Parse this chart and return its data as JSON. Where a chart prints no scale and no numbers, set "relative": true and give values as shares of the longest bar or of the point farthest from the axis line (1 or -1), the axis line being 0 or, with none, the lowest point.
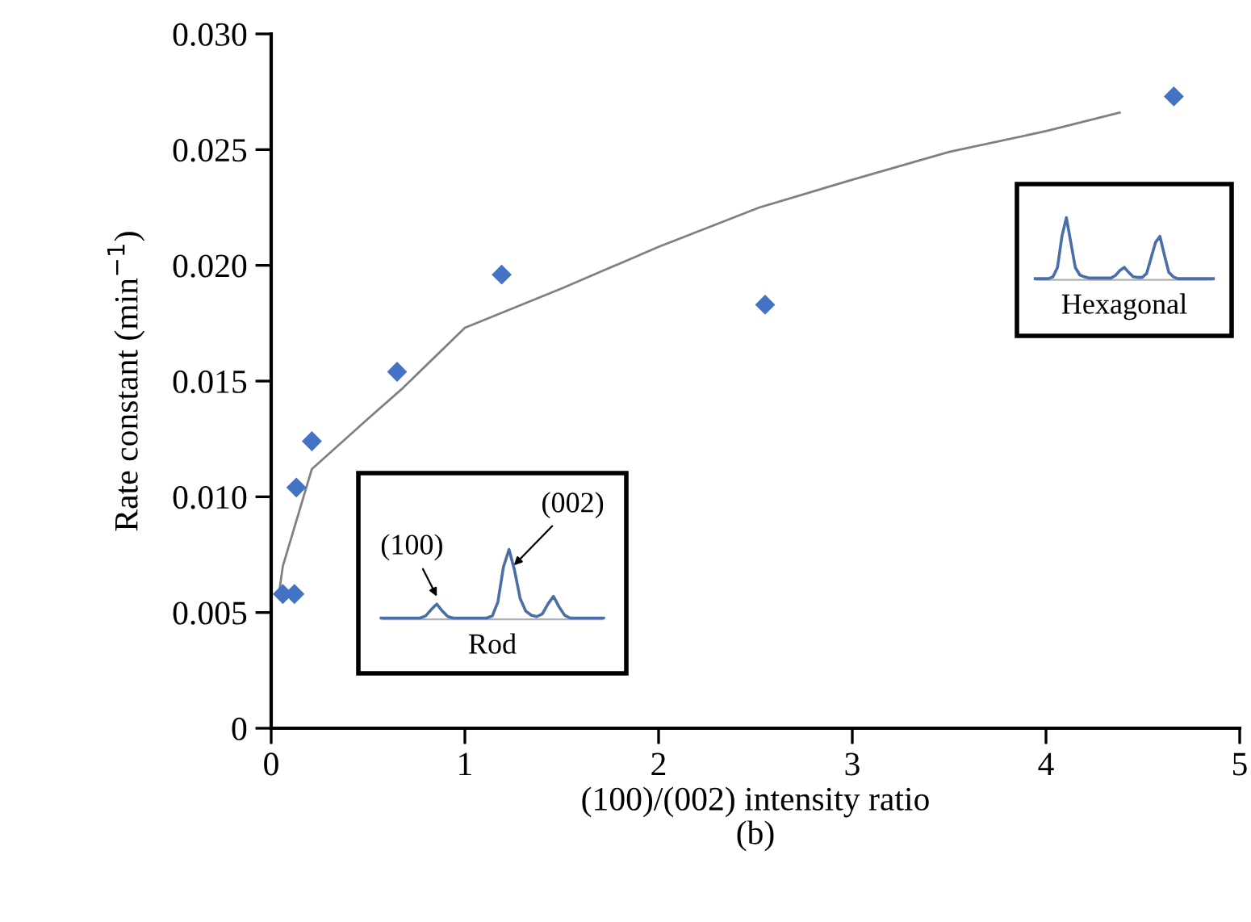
{
  "chart_data": [
    {
      "type": "scatter",
      "xlabel": "(100)/(002) intensity ratio",
      "ylabel": "Rate constant (min$^{−1}$)",
      "x": [
        0.06,
        0.12,
        0.13,
        0.21,
        0.65,
        1.19,
        2.55,
        4.66
      ],
      "series": [
        {
          "color": "#4472c4",
          "values": [
            0.0058,
            0.0058,
            0.0104,
            0.0124,
            0.0154,
            0.0196,
            0.0183,
            0.0273
          ],
          "marker": "diamond"
        },
        {
          "type": "line",
          "color": "#808080",
          "x": [
            0.04,
            0.06,
            0.21,
            0.49,
            0.68,
            1.0,
            1.5,
            2.0,
            2.52,
            3.0,
            3.5,
            4.0,
            4.38
          ],
          "values": [
            0.0058,
            0.007,
            0.0112,
            0.0133,
            0.0147,
            0.0173,
            0.019,
            0.0208,
            0.0225,
            0.0237,
            0.0249,
            0.0258,
            0.0266
          ]
        }
      ],
      "xlim": [
        0,
        5
      ],
      "xticks": [
        0,
        1,
        2,
        3,
        4,
        5
      ],
      "ylim": [
        0,
        0.03
      ],
      "yticks": [
        {
          "value": 0,
          "label": "0"
        },
        {
          "value": 0.005,
          "label": "0.005"
        },
        {
          "value": 0.01,
          "label": "0.010"
        },
        {
          "value": 0.015,
          "label": "0.015"
        },
        {
          "value": 0.02,
          "label": "0.020"
        },
        {
          "value": 0.025,
          "label": "0.025"
        },
        {
          "value": 0.03,
          "label": "0.030"
        }
      ],
      "grid": false,
      "legend": false,
      "annotations": [
        "(b)"
      ]
    },
    {
      "type": "line",
      "relative": true,
      "xlabel": "Rod",
      "annotations": [
        "(100)",
        "(002)"
      ],
      "categories": [
        null,
        null,
        null,
        null,
        null,
        null,
        null,
        null,
        null,
        null,
        null,
        null,
        null,
        null,
        null,
        null,
        null,
        null,
        null,
        null,
        null,
        null,
        null,
        null,
        null,
        null,
        null,
        null,
        null,
        null,
        null,
        null,
        null,
        null,
        null,
        null,
        null,
        null,
        null,
        null,
        null
      ],
      "series": [
        {
          "color": "#4a6ea8",
          "values": [
            0.02,
            0.02,
            0.02,
            0.02,
            0.02,
            0.02,
            0.02,
            0.02,
            0.05,
            0.14,
            0.22,
            0.12,
            0.04,
            0.02,
            0.02,
            0.02,
            0.02,
            0.02,
            0.02,
            0.02,
            0.05,
            0.25,
            0.75,
            1.0,
            0.7,
            0.3,
            0.12,
            0.06,
            0.04,
            0.08,
            0.22,
            0.33,
            0.18,
            0.06,
            0.02,
            0.02,
            0.02,
            0.02,
            0.02,
            0.02,
            0.02
          ]
        }
      ]
    },
    {
      "type": "line",
      "relative": true,
      "xlabel": "Hexagonal",
      "categories": [
        null,
        null,
        null,
        null,
        null,
        null,
        null,
        null,
        null,
        null,
        null,
        null,
        null,
        null,
        null,
        null,
        null,
        null,
        null,
        null,
        null,
        null,
        null,
        null,
        null,
        null,
        null,
        null,
        null,
        null,
        null,
        null,
        null,
        null,
        null,
        null,
        null,
        null,
        null,
        null,
        null
      ],
      "series": [
        {
          "color": "#4a6ea8",
          "values": [
            0.02,
            0.02,
            0.02,
            0.02,
            0.05,
            0.2,
            0.7,
            1.0,
            0.6,
            0.2,
            0.08,
            0.05,
            0.03,
            0.03,
            0.03,
            0.03,
            0.03,
            0.03,
            0.07,
            0.15,
            0.2,
            0.12,
            0.05,
            0.04,
            0.04,
            0.1,
            0.35,
            0.6,
            0.7,
            0.4,
            0.12,
            0.05,
            0.02,
            0.02,
            0.02,
            0.02,
            0.02,
            0.02,
            0.02,
            0.02,
            0.02
          ]
        }
      ]
    }
  ]
}
